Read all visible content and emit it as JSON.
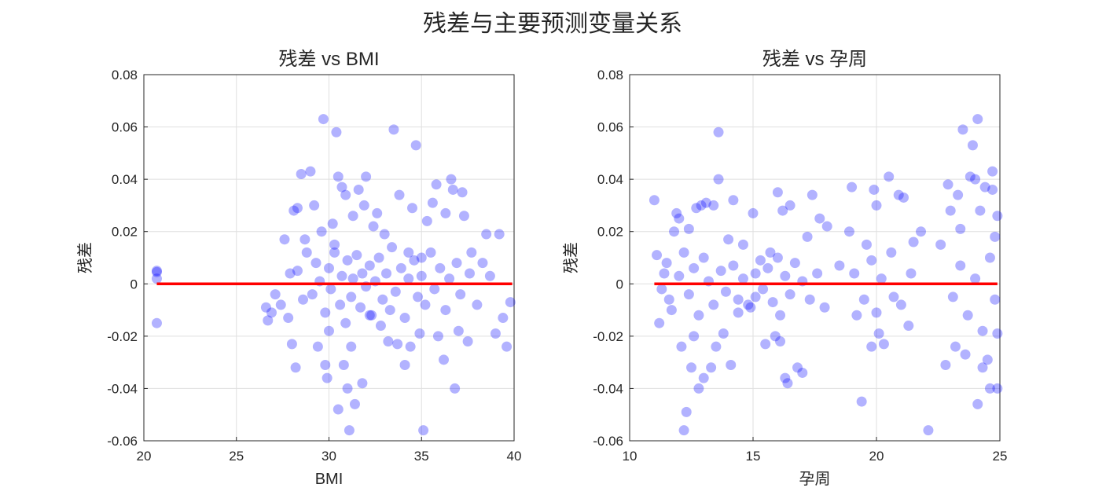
{
  "figure": {
    "title": "残差与主要预测变量关系",
    "point_color": "#0000ff",
    "line_color": "#ff0000"
  },
  "chart_data": [
    {
      "type": "scatter",
      "title": "残差 vs BMI",
      "xlabel": "BMI",
      "ylabel": "残差",
      "xlim": [
        20,
        40
      ],
      "ylim": [
        -0.06,
        0.08
      ],
      "xticks": [
        20,
        25,
        30,
        35,
        40
      ],
      "yticks": [
        -0.06,
        -0.04,
        -0.02,
        0,
        0.02,
        0.04,
        0.06,
        0.08
      ],
      "xtick_labels": [
        "20",
        "25",
        "30",
        "35",
        "40"
      ],
      "ytick_labels": [
        "-0.06",
        "-0.04",
        "-0.02",
        "0",
        "0.02",
        "0.04",
        "0.06",
        "0.08"
      ],
      "grid": true,
      "zero_line": {
        "x": [
          20.7,
          39.9
        ],
        "y": [
          0,
          0
        ]
      },
      "points": [
        [
          20.7,
          0.005
        ],
        [
          20.7,
          0.0045
        ],
        [
          20.7,
          0.002
        ],
        [
          20.7,
          -0.015
        ],
        [
          26.6,
          -0.009
        ],
        [
          26.7,
          -0.014
        ],
        [
          26.9,
          -0.011
        ],
        [
          27.1,
          -0.004
        ],
        [
          27.4,
          -0.008
        ],
        [
          27.6,
          0.017
        ],
        [
          27.8,
          -0.013
        ],
        [
          27.9,
          0.004
        ],
        [
          28.0,
          -0.023
        ],
        [
          28.1,
          0.028
        ],
        [
          28.2,
          -0.032
        ],
        [
          28.3,
          0.029
        ],
        [
          28.5,
          0.042
        ],
        [
          28.7,
          0.017
        ],
        [
          29.0,
          0.043
        ],
        [
          29.2,
          0.03
        ],
        [
          29.4,
          -0.024
        ],
        [
          29.6,
          0.02
        ],
        [
          29.7,
          0.063
        ],
        [
          29.8,
          -0.031
        ],
        [
          29.9,
          -0.036
        ],
        [
          30.0,
          -0.018
        ],
        [
          30.2,
          0.023
        ],
        [
          30.3,
          0.012
        ],
        [
          30.4,
          0.058
        ],
        [
          30.5,
          0.041
        ],
        [
          30.5,
          -0.048
        ],
        [
          30.7,
          0.037
        ],
        [
          30.8,
          -0.031
        ],
        [
          30.9,
          0.034
        ],
        [
          31.0,
          -0.04
        ],
        [
          31.1,
          -0.056
        ],
        [
          31.2,
          -0.024
        ],
        [
          31.3,
          0.026
        ],
        [
          31.4,
          -0.046
        ],
        [
          31.6,
          0.036
        ],
        [
          31.8,
          -0.038
        ],
        [
          31.9,
          0.03
        ],
        [
          32.0,
          0.041
        ],
        [
          32.2,
          -0.012
        ],
        [
          32.4,
          0.022
        ],
        [
          32.6,
          0.027
        ],
        [
          32.8,
          -0.016
        ],
        [
          33.0,
          0.019
        ],
        [
          33.2,
          -0.022
        ],
        [
          33.5,
          0.059
        ],
        [
          33.7,
          -0.023
        ],
        [
          33.8,
          0.034
        ],
        [
          34.1,
          -0.031
        ],
        [
          34.3,
          0.012
        ],
        [
          34.4,
          -0.024
        ],
        [
          34.5,
          0.029
        ],
        [
          34.7,
          0.053
        ],
        [
          34.9,
          -0.019
        ],
        [
          35.0,
          0.01
        ],
        [
          35.1,
          -0.056
        ],
        [
          35.3,
          0.024
        ],
        [
          35.6,
          0.031
        ],
        [
          35.8,
          0.038
        ],
        [
          35.9,
          -0.02
        ],
        [
          36.2,
          -0.029
        ],
        [
          36.3,
          0.027
        ],
        [
          36.6,
          0.04
        ],
        [
          36.7,
          0.036
        ],
        [
          36.8,
          -0.04
        ],
        [
          37.0,
          -0.018
        ],
        [
          37.2,
          0.035
        ],
        [
          37.3,
          0.026
        ],
        [
          37.5,
          -0.022
        ],
        [
          37.7,
          0.012
        ],
        [
          38.0,
          -0.008
        ],
        [
          38.3,
          0.008
        ],
        [
          38.5,
          0.019
        ],
        [
          38.7,
          0.003
        ],
        [
          39.0,
          -0.019
        ],
        [
          39.2,
          0.019
        ],
        [
          39.4,
          -0.013
        ],
        [
          39.6,
          -0.024
        ],
        [
          39.8,
          -0.007
        ],
        [
          28.3,
          0.005
        ],
        [
          28.6,
          -0.006
        ],
        [
          28.8,
          0.012
        ],
        [
          29.1,
          -0.004
        ],
        [
          29.3,
          0.008
        ],
        [
          29.5,
          0.001
        ],
        [
          29.8,
          -0.011
        ],
        [
          30.0,
          0.006
        ],
        [
          30.1,
          -0.002
        ],
        [
          30.3,
          0.015
        ],
        [
          30.6,
          -0.008
        ],
        [
          30.7,
          0.003
        ],
        [
          30.9,
          -0.015
        ],
        [
          31.0,
          0.009
        ],
        [
          31.2,
          -0.005
        ],
        [
          31.3,
          0.002
        ],
        [
          31.5,
          0.011
        ],
        [
          31.7,
          -0.009
        ],
        [
          31.8,
          0.004
        ],
        [
          32.0,
          -0.001
        ],
        [
          32.2,
          0.007
        ],
        [
          32.3,
          -0.012
        ],
        [
          32.5,
          0.001
        ],
        [
          32.7,
          0.01
        ],
        [
          32.9,
          -0.006
        ],
        [
          33.1,
          0.004
        ],
        [
          33.3,
          -0.01
        ],
        [
          33.4,
          0.014
        ],
        [
          33.6,
          -0.003
        ],
        [
          33.9,
          0.006
        ],
        [
          34.1,
          -0.013
        ],
        [
          34.3,
          0.002
        ],
        [
          34.6,
          0.009
        ],
        [
          34.8,
          -0.005
        ],
        [
          35.0,
          0.003
        ],
        [
          35.2,
          -0.008
        ],
        [
          35.5,
          0.012
        ],
        [
          35.7,
          -0.002
        ],
        [
          36.0,
          0.006
        ],
        [
          36.3,
          -0.01
        ],
        [
          36.5,
          0.002
        ],
        [
          36.9,
          0.008
        ],
        [
          37.1,
          -0.004
        ],
        [
          37.6,
          0.004
        ]
      ]
    },
    {
      "type": "scatter",
      "title": "残差 vs 孕周",
      "xlabel": "孕周",
      "ylabel": "残差",
      "xlim": [
        10,
        25
      ],
      "ylim": [
        -0.06,
        0.08
      ],
      "xticks": [
        10,
        15,
        20,
        25
      ],
      "yticks": [
        -0.06,
        -0.04,
        -0.02,
        0,
        0.02,
        0.04,
        0.06,
        0.08
      ],
      "xtick_labels": [
        "10",
        "15",
        "20",
        "25"
      ],
      "ytick_labels": [
        "-0.06",
        "-0.04",
        "-0.02",
        "0",
        "0.02",
        "0.04",
        "0.06",
        "0.08"
      ],
      "grid": true,
      "zero_line": {
        "x": [
          11.0,
          24.9
        ],
        "y": [
          0,
          0
        ]
      },
      "points": [
        [
          11.0,
          0.032
        ],
        [
          11.1,
          0.011
        ],
        [
          11.2,
          -0.015
        ],
        [
          11.4,
          0.004
        ],
        [
          11.6,
          -0.006
        ],
        [
          11.8,
          0.02
        ],
        [
          11.9,
          0.027
        ],
        [
          12.0,
          0.025
        ],
        [
          12.1,
          -0.024
        ],
        [
          12.2,
          -0.056
        ],
        [
          12.3,
          -0.049
        ],
        [
          12.4,
          0.021
        ],
        [
          12.5,
          -0.032
        ],
        [
          12.6,
          -0.02
        ],
        [
          12.7,
          0.029
        ],
        [
          12.8,
          -0.04
        ],
        [
          12.9,
          0.03
        ],
        [
          13.0,
          -0.036
        ],
        [
          13.1,
          0.031
        ],
        [
          13.3,
          -0.032
        ],
        [
          13.4,
          0.03
        ],
        [
          13.5,
          -0.024
        ],
        [
          13.6,
          0.058
        ],
        [
          13.6,
          0.04
        ],
        [
          13.8,
          -0.019
        ],
        [
          14.0,
          0.017
        ],
        [
          14.1,
          -0.031
        ],
        [
          14.2,
          0.032
        ],
        [
          14.4,
          -0.011
        ],
        [
          14.6,
          0.015
        ],
        [
          14.8,
          -0.008
        ],
        [
          15.0,
          0.027
        ],
        [
          15.1,
          -0.005
        ],
        [
          15.3,
          0.009
        ],
        [
          15.5,
          -0.023
        ],
        [
          15.7,
          0.012
        ],
        [
          15.9,
          -0.02
        ],
        [
          16.0,
          0.035
        ],
        [
          16.1,
          -0.022
        ],
        [
          16.2,
          0.028
        ],
        [
          16.3,
          -0.036
        ],
        [
          16.4,
          -0.038
        ],
        [
          16.5,
          0.03
        ],
        [
          16.8,
          -0.032
        ],
        [
          17.0,
          -0.034
        ],
        [
          17.2,
          0.018
        ],
        [
          17.4,
          0.034
        ],
        [
          17.7,
          0.025
        ],
        [
          18.0,
          0.022
        ],
        [
          18.5,
          0.007
        ],
        [
          18.9,
          0.02
        ],
        [
          19.0,
          0.037
        ],
        [
          19.2,
          -0.012
        ],
        [
          19.4,
          -0.045
        ],
        [
          19.6,
          0.015
        ],
        [
          19.8,
          -0.024
        ],
        [
          19.9,
          0.036
        ],
        [
          20.0,
          0.03
        ],
        [
          20.1,
          -0.019
        ],
        [
          20.3,
          -0.023
        ],
        [
          20.5,
          0.041
        ],
        [
          20.7,
          -0.005
        ],
        [
          20.9,
          0.034
        ],
        [
          21.1,
          0.033
        ],
        [
          21.3,
          -0.016
        ],
        [
          21.5,
          0.016
        ],
        [
          21.8,
          0.02
        ],
        [
          22.1,
          -0.056
        ],
        [
          22.6,
          0.015
        ],
        [
          22.8,
          -0.031
        ],
        [
          22.9,
          0.038
        ],
        [
          23.0,
          0.028
        ],
        [
          23.2,
          -0.024
        ],
        [
          23.3,
          0.034
        ],
        [
          23.4,
          0.021
        ],
        [
          23.5,
          0.059
        ],
        [
          23.6,
          -0.027
        ],
        [
          23.8,
          0.041
        ],
        [
          23.9,
          0.053
        ],
        [
          24.0,
          0.04
        ],
        [
          24.1,
          0.063
        ],
        [
          24.1,
          -0.046
        ],
        [
          24.2,
          0.028
        ],
        [
          24.3,
          -0.032
        ],
        [
          24.4,
          0.037
        ],
        [
          24.5,
          -0.029
        ],
        [
          24.6,
          -0.04
        ],
        [
          24.7,
          0.043
        ],
        [
          24.7,
          0.036
        ],
        [
          24.8,
          0.018
        ],
        [
          24.9,
          -0.04
        ],
        [
          24.9,
          0.026
        ],
        [
          24.9,
          -0.019
        ],
        [
          11.3,
          -0.002
        ],
        [
          11.5,
          0.008
        ],
        [
          11.7,
          -0.01
        ],
        [
          12.0,
          0.003
        ],
        [
          12.2,
          0.012
        ],
        [
          12.4,
          -0.004
        ],
        [
          12.6,
          0.006
        ],
        [
          12.8,
          -0.012
        ],
        [
          13.0,
          0.01
        ],
        [
          13.2,
          0.001
        ],
        [
          13.4,
          -0.008
        ],
        [
          13.7,
          0.005
        ],
        [
          13.9,
          -0.003
        ],
        [
          14.2,
          0.007
        ],
        [
          14.4,
          -0.006
        ],
        [
          14.6,
          0.002
        ],
        [
          14.9,
          -0.009
        ],
        [
          15.1,
          0.004
        ],
        [
          15.4,
          -0.002
        ],
        [
          15.6,
          0.006
        ],
        [
          15.8,
          -0.007
        ],
        [
          16.0,
          0.01
        ],
        [
          16.1,
          -0.012
        ],
        [
          16.3,
          0.003
        ],
        [
          16.5,
          -0.004
        ],
        [
          16.7,
          0.008
        ],
        [
          17.0,
          0.001
        ],
        [
          17.3,
          -0.006
        ],
        [
          17.6,
          0.004
        ],
        [
          17.9,
          -0.009
        ],
        [
          19.1,
          0.004
        ],
        [
          19.5,
          -0.006
        ],
        [
          19.8,
          0.009
        ],
        [
          20.0,
          -0.011
        ],
        [
          20.2,
          0.002
        ],
        [
          20.6,
          0.012
        ],
        [
          21.0,
          -0.008
        ],
        [
          21.4,
          0.004
        ],
        [
          23.1,
          -0.005
        ],
        [
          23.4,
          0.007
        ],
        [
          23.7,
          -0.012
        ],
        [
          24.0,
          0.002
        ],
        [
          24.3,
          -0.018
        ],
        [
          24.6,
          0.01
        ],
        [
          24.8,
          -0.006
        ]
      ]
    }
  ]
}
